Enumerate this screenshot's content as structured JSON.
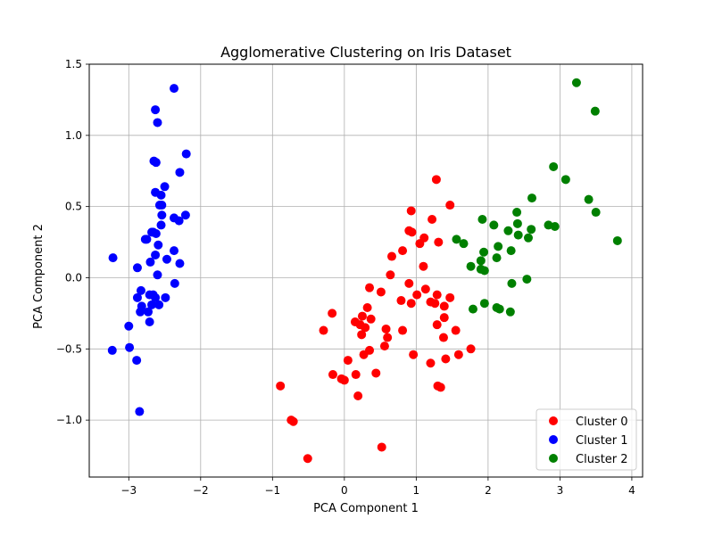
{
  "chart_data": {
    "type": "scatter",
    "title": "Agglomerative Clustering on Iris Dataset",
    "xlabel": "PCA Component 1",
    "ylabel": "PCA Component 2",
    "xlim": [
      -3.55,
      4.15
    ],
    "ylim": [
      -1.4,
      1.5
    ],
    "xticks": [
      -3,
      -2,
      -1,
      0,
      1,
      2,
      3,
      4
    ],
    "xtick_labels": [
      "−3",
      "−2",
      "−1",
      "0",
      "1",
      "2",
      "3",
      "4"
    ],
    "yticks": [
      -1.0,
      -0.5,
      0.0,
      0.5,
      1.0,
      1.5
    ],
    "ytick_labels": [
      "−1.0",
      "−0.5",
      "0.0",
      "0.5",
      "1.0",
      "1.5"
    ],
    "grid": true,
    "legend_position": "bottom-right",
    "series": [
      {
        "name": "Cluster 0",
        "color": "#ff0000",
        "points": [
          [
            1.28,
            0.69
          ],
          [
            1.47,
            0.51
          ],
          [
            0.93,
            0.47
          ],
          [
            1.22,
            0.41
          ],
          [
            0.9,
            0.33
          ],
          [
            0.94,
            0.32
          ],
          [
            1.11,
            0.28
          ],
          [
            1.31,
            0.25
          ],
          [
            0.81,
            0.19
          ],
          [
            1.05,
            0.24
          ],
          [
            0.66,
            0.15
          ],
          [
            1.1,
            0.08
          ],
          [
            0.64,
            0.02
          ],
          [
            0.9,
            -0.04
          ],
          [
            0.35,
            -0.07
          ],
          [
            0.51,
            -0.1
          ],
          [
            1.13,
            -0.08
          ],
          [
            1.01,
            -0.12
          ],
          [
            1.29,
            -0.12
          ],
          [
            1.47,
            -0.14
          ],
          [
            0.79,
            -0.16
          ],
          [
            1.2,
            -0.17
          ],
          [
            0.93,
            -0.18
          ],
          [
            1.26,
            -0.18
          ],
          [
            1.39,
            -0.2
          ],
          [
            0.32,
            -0.21
          ],
          [
            -0.17,
            -0.25
          ],
          [
            0.25,
            -0.27
          ],
          [
            0.37,
            -0.29
          ],
          [
            0.15,
            -0.31
          ],
          [
            0.22,
            -0.33
          ],
          [
            1.39,
            -0.28
          ],
          [
            1.29,
            -0.33
          ],
          [
            0.29,
            -0.35
          ],
          [
            0.58,
            -0.36
          ],
          [
            -0.29,
            -0.37
          ],
          [
            0.81,
            -0.37
          ],
          [
            1.55,
            -0.37
          ],
          [
            0.24,
            -0.4
          ],
          [
            0.6,
            -0.42
          ],
          [
            1.38,
            -0.42
          ],
          [
            0.56,
            -0.48
          ],
          [
            1.76,
            -0.5
          ],
          [
            0.35,
            -0.51
          ],
          [
            1.59,
            -0.54
          ],
          [
            0.27,
            -0.54
          ],
          [
            0.96,
            -0.54
          ],
          [
            1.41,
            -0.57
          ],
          [
            0.05,
            -0.58
          ],
          [
            1.2,
            -0.6
          ],
          [
            -0.16,
            -0.68
          ],
          [
            0.16,
            -0.68
          ],
          [
            0.44,
            -0.67
          ],
          [
            -0.04,
            -0.71
          ],
          [
            0.0,
            -0.72
          ],
          [
            -0.89,
            -0.76
          ],
          [
            1.3,
            -0.76
          ],
          [
            1.34,
            -0.77
          ],
          [
            0.19,
            -0.83
          ],
          [
            -0.74,
            -1.0
          ],
          [
            -0.71,
            -1.01
          ],
          [
            0.52,
            -1.19
          ],
          [
            -0.51,
            -1.27
          ]
        ]
      },
      {
        "name": "Cluster 1",
        "color": "#0000ff",
        "points": [
          [
            -2.37,
            1.33
          ],
          [
            -2.63,
            1.18
          ],
          [
            -2.6,
            1.09
          ],
          [
            -2.2,
            0.87
          ],
          [
            -2.65,
            0.82
          ],
          [
            -2.62,
            0.81
          ],
          [
            -2.29,
            0.74
          ],
          [
            -2.5,
            0.64
          ],
          [
            -2.63,
            0.6
          ],
          [
            -2.55,
            0.58
          ],
          [
            -2.57,
            0.51
          ],
          [
            -2.54,
            0.51
          ],
          [
            -2.54,
            0.44
          ],
          [
            -2.21,
            0.44
          ],
          [
            -2.37,
            0.42
          ],
          [
            -2.3,
            0.4
          ],
          [
            -2.55,
            0.37
          ],
          [
            -2.66,
            0.32
          ],
          [
            -2.68,
            0.32
          ],
          [
            -2.62,
            0.31
          ],
          [
            -2.77,
            0.27
          ],
          [
            -2.75,
            0.27
          ],
          [
            -2.59,
            0.23
          ],
          [
            -2.37,
            0.19
          ],
          [
            -2.47,
            0.13
          ],
          [
            -2.63,
            0.16
          ],
          [
            -3.22,
            0.14
          ],
          [
            -2.7,
            0.11
          ],
          [
            -2.29,
            0.1
          ],
          [
            -2.88,
            0.07
          ],
          [
            -2.6,
            0.02
          ],
          [
            -2.36,
            -0.04
          ],
          [
            -2.83,
            -0.09
          ],
          [
            -2.66,
            -0.12
          ],
          [
            -2.71,
            -0.12
          ],
          [
            -2.63,
            -0.14
          ],
          [
            -2.49,
            -0.14
          ],
          [
            -2.88,
            -0.14
          ],
          [
            -2.68,
            -0.19
          ],
          [
            -2.58,
            -0.19
          ],
          [
            -2.82,
            -0.2
          ],
          [
            -2.73,
            -0.24
          ],
          [
            -2.84,
            -0.24
          ],
          [
            -2.71,
            -0.31
          ],
          [
            -3.0,
            -0.34
          ],
          [
            -2.99,
            -0.49
          ],
          [
            -3.23,
            -0.51
          ],
          [
            -2.89,
            -0.58
          ],
          [
            -2.85,
            -0.94
          ]
        ]
      },
      {
        "name": "Cluster 2",
        "color": "#008000",
        "points": [
          [
            3.23,
            1.37
          ],
          [
            3.49,
            1.17
          ],
          [
            2.91,
            0.78
          ],
          [
            3.08,
            0.69
          ],
          [
            2.61,
            0.56
          ],
          [
            3.4,
            0.55
          ],
          [
            3.5,
            0.46
          ],
          [
            2.4,
            0.46
          ],
          [
            1.92,
            0.41
          ],
          [
            2.41,
            0.38
          ],
          [
            2.08,
            0.37
          ],
          [
            2.84,
            0.37
          ],
          [
            2.93,
            0.36
          ],
          [
            2.6,
            0.34
          ],
          [
            2.28,
            0.33
          ],
          [
            2.42,
            0.3
          ],
          [
            2.56,
            0.28
          ],
          [
            3.8,
            0.26
          ],
          [
            1.56,
            0.27
          ],
          [
            1.66,
            0.24
          ],
          [
            2.14,
            0.22
          ],
          [
            2.32,
            0.19
          ],
          [
            1.94,
            0.18
          ],
          [
            2.12,
            0.14
          ],
          [
            1.9,
            0.12
          ],
          [
            1.76,
            0.08
          ],
          [
            1.9,
            0.06
          ],
          [
            1.95,
            0.05
          ],
          [
            2.54,
            -0.01
          ],
          [
            2.33,
            -0.04
          ],
          [
            1.95,
            -0.18
          ],
          [
            2.12,
            -0.21
          ],
          [
            1.79,
            -0.22
          ],
          [
            2.16,
            -0.22
          ],
          [
            2.31,
            -0.24
          ]
        ]
      }
    ]
  }
}
